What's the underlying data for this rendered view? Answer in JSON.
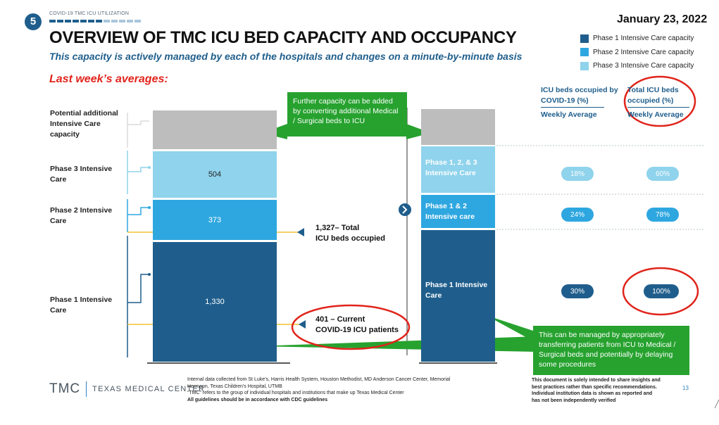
{
  "slide": {
    "number": "5",
    "kicker": "COVID-19 TMC ICU UTILIZATION",
    "title": "OVERVIEW OF TMC ICU BED CAPACITY AND OCCUPANCY",
    "subtitle": "This capacity is actively managed by each of the hospitals and changes on a minute-by-minute basis",
    "date": "January 23, 2022",
    "last_week_heading": "Last week’s averages:"
  },
  "colors": {
    "phase1": "#1f5e8c",
    "phase2": "#2ea7e0",
    "phase3": "#8fd3ec",
    "potential": "#bdbdbd",
    "green": "#27a22f",
    "red": "#e0241b",
    "pill": "#2ea7e0"
  },
  "legend": [
    {
      "label": "Phase 1 Intensive Care capacity",
      "color": "#1f5e8c"
    },
    {
      "label": "Phase 2 Intensive Care capacity",
      "color": "#2ea7e0"
    },
    {
      "label": "Phase 3 Intensive Care capacity",
      "color": "#8fd3ec"
    }
  ],
  "side_labels": {
    "potential": "Potential additional Intensive Care capacity",
    "phase3": "Phase 3 Intensive Care",
    "phase2": "Phase 2 Intensive Care",
    "phase1": "Phase 1 Intensive Care"
  },
  "chart_data": {
    "type": "bar",
    "categories": [
      "Potential additional Intensive Care capacity",
      "Phase 3 Intensive Care",
      "Phase 2 Intensive Care",
      "Phase 1 Intensive Care"
    ],
    "values": [
      null,
      504,
      373,
      1330
    ],
    "value_labels": [
      "",
      "504",
      "373",
      "1,330"
    ],
    "reference_lines": [
      {
        "value": 1327,
        "label": "1,327– Total ICU beds occupied"
      },
      {
        "value": 401,
        "label": "401 – Current COVID-19 ICU patients"
      }
    ]
  },
  "callouts": {
    "further_capacity": "Further capacity can be added by converting additional Medical / Surgical beds to ICU",
    "managed": "This can be managed by appropriately transferring patients from ICU to Medical / Surgical beds and potentially by delaying some procedures",
    "total_occupied_1": "1,327– Total",
    "total_occupied_2": "ICU beds occupied",
    "covid_1": "401 – Current",
    "covid_2": "COVID-19 ICU patients"
  },
  "right_bar": {
    "seg_123": "Phase 1, 2, & 3 Intensive Care",
    "seg_12": "Phase 1 & 2 Intensive care",
    "seg_1": "Phase 1 Intensive Care"
  },
  "table": {
    "col1_head": "ICU beds occupied by COVID-19 (%)",
    "col1_sub": "Weekly Average",
    "col2_head": "Total ICU beds occupied (%)",
    "col2_sub": "Weekly Average",
    "rows": [
      {
        "name": "Phase 1, 2, & 3",
        "covid": "18%",
        "total": "60%"
      },
      {
        "name": "Phase 1 & 2",
        "covid": "24%",
        "total": "78%"
      },
      {
        "name": "Phase 1",
        "covid": "30%",
        "total": "100%"
      }
    ]
  },
  "footer": {
    "logo_big": "TMC",
    "logo_small": "TEXAS MEDICAL CENTER",
    "source_1": "Internal data collected from St Luke’s, Harris Health System, Houston Methodist, MD Anderson Cancer Center, Memorial",
    "source_2": "Hermann, Texas Children’s Hospital, UTMB",
    "source_3": "“TMC” refers to the group of individual hospitals and institutions that make up Texas Medical Center",
    "source_4": "All guidelines should be in accordance with CDC guidelines",
    "disclaimer_1": "This document is solely intended to share insights and",
    "disclaimer_2": "best practices rather than specific recommendations.",
    "disclaimer_3": "Individual institution data is shown as reported and",
    "disclaimer_4": "has not been independently verified",
    "page": "13"
  }
}
